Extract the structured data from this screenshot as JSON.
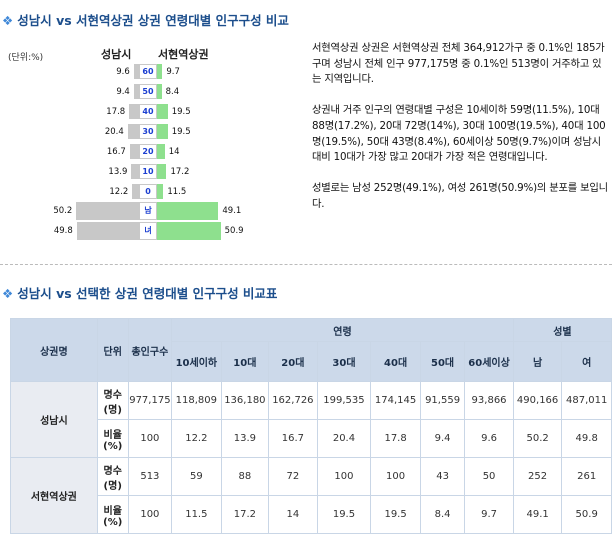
{
  "section1_title": "성남시 vs 서현역상권 상권 연령대별 인구구성 비교",
  "section2_title": "성남시 vs 선택한 상권 연령대별 인구구성 비교표",
  "unit_label": "(단위:%)",
  "pyramid": {
    "left_header": "성남시",
    "right_header": "서현역상권",
    "rows": [
      {
        "label": "60",
        "left": 9.6,
        "right": 9.7
      },
      {
        "label": "50",
        "left": 9.4,
        "right": 8.4
      },
      {
        "label": "40",
        "left": 17.8,
        "right": 19.5
      },
      {
        "label": "30",
        "left": 20.4,
        "right": 19.5
      },
      {
        "label": "20",
        "left": 16.7,
        "right": 14
      },
      {
        "label": "10",
        "left": 13.9,
        "right": 17.2
      },
      {
        "label": "0",
        "left": 12.2,
        "right": 11.5
      },
      {
        "label": "남",
        "left": 50.2,
        "right": 49.1
      },
      {
        "label": "녀",
        "left": 49.8,
        "right": 50.9
      }
    ],
    "colors": {
      "left_bar": "#c8c8c8",
      "right_bar": "#8ee08e",
      "label": "#1c3fd1"
    }
  },
  "description": [
    "서현역상권 상권은 서현역상권 전체 364,912가구 중 0.1%인 185가구며 성남시 전체 인구 977,175명 중 0.1%인 513명이 거주하고 있는 지역입니다.",
    "상권내 거주 인구의 연령대별 구성은 10세이하 59명(11.5%), 10대 88명(17.2%), 20대 72명(14%), 30대 100명(19.5%), 40대 100명(19.5%), 50대 43명(8.4%), 60세이상 50명(9.7%)이며 성남시 대비 10대가 가장 많고 20대가 가장 적은 연령대입니다.",
    "성별로는 남성 252명(49.1%), 여성 261명(50.9%)의 분포를 보입니다."
  ],
  "table": {
    "h_area": "상권명",
    "h_unit": "단위",
    "h_total": "총인구수",
    "h_age_group": "연령",
    "h_gender_group": "성별",
    "age_headers": [
      "10세이하",
      "10대",
      "20대",
      "30대",
      "40대",
      "50대",
      "60세이상"
    ],
    "gender_headers": [
      "남",
      "여"
    ],
    "areas": [
      {
        "name": "성남시",
        "rows": [
          {
            "unit": "명수(명)",
            "values": [
              "977,175",
              "118,809",
              "136,180",
              "162,726",
              "199,535",
              "174,145",
              "91,559",
              "93,866",
              "490,166",
              "487,011"
            ]
          },
          {
            "unit": "비율(%)",
            "values": [
              "100",
              "12.2",
              "13.9",
              "16.7",
              "20.4",
              "17.8",
              "9.4",
              "9.6",
              "50.2",
              "49.8"
            ]
          }
        ]
      },
      {
        "name": "서현역상권",
        "rows": [
          {
            "unit": "명수(명)",
            "values": [
              "513",
              "59",
              "88",
              "72",
              "100",
              "100",
              "43",
              "50",
              "252",
              "261"
            ]
          },
          {
            "unit": "비율(%)",
            "values": [
              "100",
              "11.5",
              "17.2",
              "14",
              "19.5",
              "19.5",
              "8.4",
              "9.7",
              "49.1",
              "50.9"
            ]
          }
        ]
      }
    ]
  }
}
